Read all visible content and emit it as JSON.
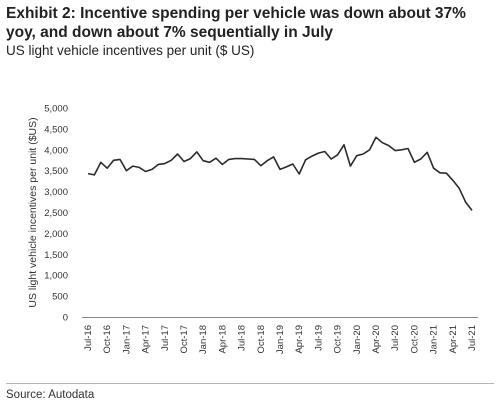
{
  "header": {
    "title": "Exhibit 2: Incentive spending per vehicle was down about 37% yoy, and down about 7% sequentially in July",
    "subtitle": "US light vehicle incentives per unit ($ US)"
  },
  "footer": {
    "source": "Source: Autodata"
  },
  "colors": {
    "line": "#2b2b2b",
    "axis": "#888888"
  },
  "chart_data": {
    "type": "line",
    "ylabel": "US light vehicle incentives per unit ($US)",
    "ylim": [
      0,
      5000
    ],
    "yticks": [
      "0",
      "500",
      "1,000",
      "1,500",
      "2,000",
      "2,500",
      "3,000",
      "3,500",
      "4,000",
      "4,500",
      "5,000"
    ],
    "xtick_labels": [
      "Jul-16",
      "Oct-16",
      "Jan-17",
      "Apr-17",
      "Jul-17",
      "Oct-17",
      "Jan-18",
      "Apr-18",
      "Jul-18",
      "Oct-18",
      "Jan-19",
      "Apr-19",
      "Jul-19",
      "Oct-19",
      "Jan-20",
      "Apr-20",
      "Jul-20",
      "Oct-20",
      "Jan-21",
      "Apr-21",
      "Jul-21"
    ],
    "grid": false,
    "series": [
      {
        "x": [
          "Jul-16",
          "Aug-16",
          "Sep-16",
          "Oct-16",
          "Nov-16",
          "Dec-16",
          "Jan-17",
          "Feb-17",
          "Mar-17",
          "Apr-17",
          "May-17",
          "Jun-17",
          "Jul-17",
          "Aug-17",
          "Sep-17",
          "Oct-17",
          "Nov-17",
          "Dec-17",
          "Jan-18",
          "Feb-18",
          "Mar-18",
          "Apr-18",
          "May-18",
          "Jun-18",
          "Jul-18",
          "Aug-18",
          "Sep-18",
          "Oct-18",
          "Nov-18",
          "Dec-18",
          "Jan-19",
          "Feb-19",
          "Mar-19",
          "Apr-19",
          "May-19",
          "Jun-19",
          "Jul-19",
          "Aug-19",
          "Sep-19",
          "Oct-19",
          "Nov-19",
          "Dec-19",
          "Jan-20",
          "Feb-20",
          "Mar-20",
          "Apr-20",
          "May-20",
          "Jun-20",
          "Jul-20",
          "Aug-20",
          "Sep-20",
          "Oct-20",
          "Nov-20",
          "Dec-20",
          "Jan-21",
          "Feb-21",
          "Mar-21",
          "Apr-21",
          "May-21",
          "Jun-21",
          "Jul-21"
        ],
        "values": [
          3430,
          3400,
          3700,
          3560,
          3750,
          3770,
          3500,
          3610,
          3580,
          3480,
          3530,
          3650,
          3670,
          3750,
          3900,
          3720,
          3790,
          3950,
          3740,
          3700,
          3800,
          3650,
          3770,
          3790,
          3790,
          3780,
          3770,
          3620,
          3740,
          3830,
          3530,
          3590,
          3660,
          3420,
          3760,
          3850,
          3920,
          3960,
          3780,
          3880,
          4120,
          3610,
          3860,
          3900,
          4000,
          4300,
          4170,
          4100,
          3980,
          4000,
          4030,
          3700,
          3780,
          3940,
          3560,
          3450,
          3440,
          3270,
          3080,
          2750,
          2550
        ]
      }
    ]
  }
}
